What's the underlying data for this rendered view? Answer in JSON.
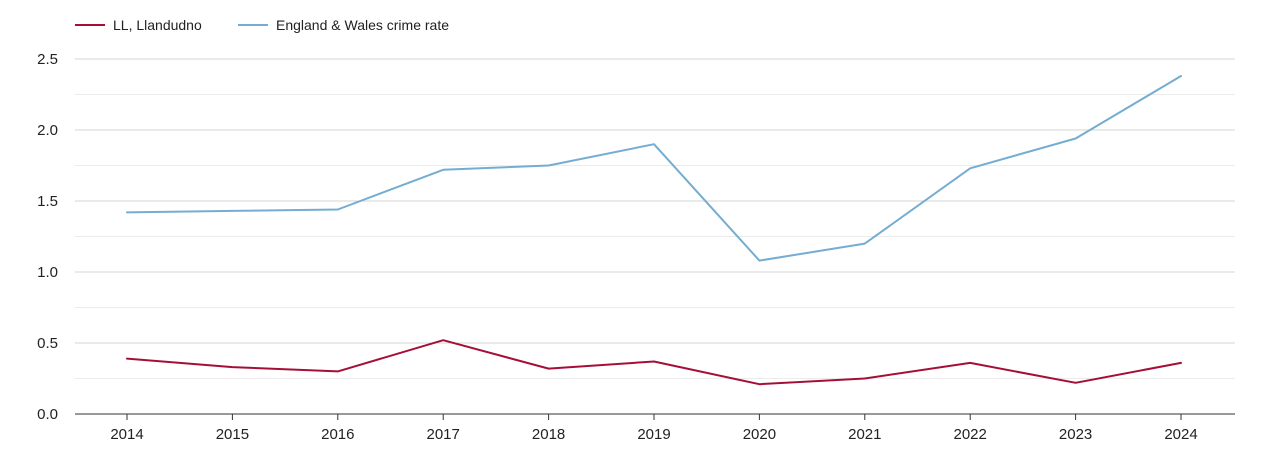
{
  "chart_data": {
    "type": "line",
    "x": [
      "2014",
      "2015",
      "2016",
      "2017",
      "2018",
      "2019",
      "2020",
      "2021",
      "2022",
      "2023",
      "2024"
    ],
    "series": [
      {
        "name": "LL, Llandudno",
        "color": "#a50f37",
        "values": [
          0.39,
          0.33,
          0.3,
          0.52,
          0.32,
          0.37,
          0.21,
          0.25,
          0.36,
          0.22,
          0.36
        ]
      },
      {
        "name": "England & Wales crime rate",
        "color": "#74add1",
        "values": [
          1.42,
          1.43,
          1.44,
          1.72,
          1.75,
          1.9,
          1.08,
          1.2,
          1.73,
          1.94,
          2.38
        ]
      }
    ],
    "y_ticks": [
      "0.0",
      "0.5",
      "1.0",
      "1.5",
      "2.0",
      "2.5"
    ],
    "ylim": [
      0,
      2.5
    ],
    "grid": true,
    "legend_position": "top-left",
    "title": "",
    "xlabel": "",
    "ylabel": ""
  }
}
